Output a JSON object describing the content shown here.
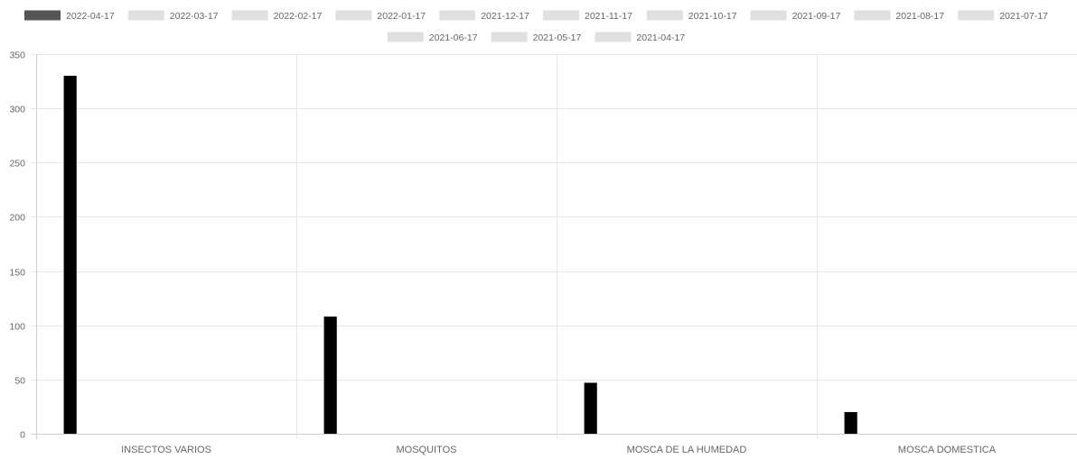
{
  "chart_data": {
    "type": "bar",
    "title": "",
    "xlabel": "",
    "ylabel": "",
    "categories": [
      "INSECTOS VARIOS",
      "MOSQUITOS",
      "MOSCA DE LA HUMEDAD",
      "MOSCA DOMESTICA"
    ],
    "ylim": [
      0,
      350
    ],
    "yticks": [
      0,
      50,
      100,
      150,
      200,
      250,
      300,
      350
    ],
    "grid": true,
    "legend_position": "top",
    "series": [
      {
        "name": "2022-04-17",
        "color": "#000000",
        "legend_color": "#555555",
        "values": [
          330,
          108,
          47,
          20
        ]
      },
      {
        "name": "2022-03-17",
        "color": "#e0e0e0",
        "values": [
          0,
          0,
          0,
          0
        ]
      },
      {
        "name": "2022-02-17",
        "color": "#e0e0e0",
        "values": [
          0,
          0,
          0,
          0
        ]
      },
      {
        "name": "2022-01-17",
        "color": "#e0e0e0",
        "values": [
          0,
          0,
          0,
          0
        ]
      },
      {
        "name": "2021-12-17",
        "color": "#e0e0e0",
        "values": [
          0,
          0,
          0,
          0
        ]
      },
      {
        "name": "2021-11-17",
        "color": "#e0e0e0",
        "values": [
          0,
          0,
          0,
          0
        ]
      },
      {
        "name": "2021-10-17",
        "color": "#e0e0e0",
        "values": [
          0,
          0,
          0,
          0
        ]
      },
      {
        "name": "2021-09-17",
        "color": "#e0e0e0",
        "values": [
          0,
          0,
          0,
          0
        ]
      },
      {
        "name": "2021-08-17",
        "color": "#e0e0e0",
        "values": [
          0,
          0,
          0,
          0
        ]
      },
      {
        "name": "2021-07-17",
        "color": "#e0e0e0",
        "values": [
          0,
          0,
          0,
          0
        ]
      },
      {
        "name": "2021-06-17",
        "color": "#e0e0e0",
        "values": [
          0,
          0,
          0,
          0
        ]
      },
      {
        "name": "2021-05-17",
        "color": "#e0e0e0",
        "values": [
          0,
          0,
          0,
          0
        ]
      },
      {
        "name": "2021-04-17",
        "color": "#e0e0e0",
        "values": [
          0,
          0,
          0,
          0
        ]
      }
    ],
    "gridline_color": "#e6e6e6",
    "text_color": "#666666"
  }
}
